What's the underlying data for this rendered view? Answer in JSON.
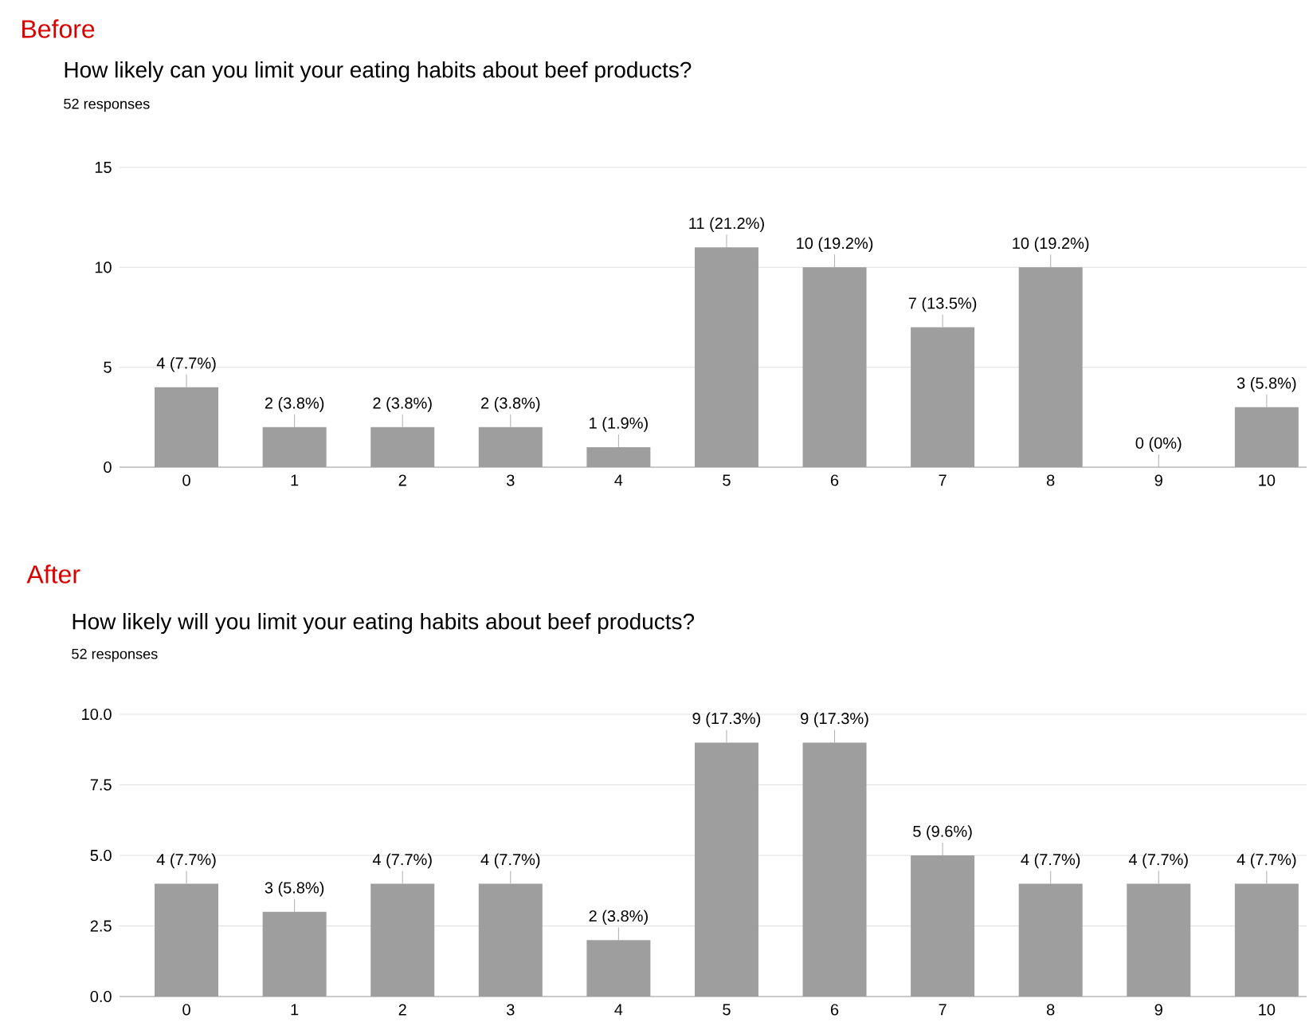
{
  "chart_data": [
    {
      "type": "bar",
      "annotations": [
        "Before"
      ],
      "title": "How likely can you limit your eating habits about beef products?",
      "subtitle": "52 responses",
      "categories": [
        "0",
        "1",
        "2",
        "3",
        "4",
        "5",
        "6",
        "7",
        "8",
        "9",
        "10"
      ],
      "values": [
        4,
        2,
        2,
        2,
        1,
        11,
        10,
        7,
        10,
        0,
        3
      ],
      "value_labels": [
        "4 (7.7%)",
        "2 (3.8%)",
        "2 (3.8%)",
        "2 (3.8%)",
        "1 (1.9%)",
        "11 (21.2%)",
        "10 (19.2%)",
        "7 (13.5%)",
        "10 (19.2%)",
        "0 (0%)",
        "3 (5.8%)"
      ],
      "color": "#9e9e9e",
      "ylim": [
        0,
        15
      ],
      "yticks": [
        0,
        5,
        10,
        15
      ],
      "grid": "y"
    },
    {
      "type": "bar",
      "annotations": [
        "After"
      ],
      "title": "How likely will you limit your eating habits about beef products?",
      "subtitle": "52 responses",
      "categories": [
        "0",
        "1",
        "2",
        "3",
        "4",
        "5",
        "6",
        "7",
        "8",
        "9",
        "10"
      ],
      "values": [
        4,
        3,
        4,
        4,
        2,
        9,
        9,
        5,
        4,
        4,
        4
      ],
      "value_labels": [
        "4 (7.7%)",
        "3 (5.8%)",
        "4 (7.7%)",
        "4 (7.7%)",
        "2 (3.8%)",
        "9 (17.3%)",
        "9 (17.3%)",
        "5 (9.6%)",
        "4 (7.7%)",
        "4 (7.7%)",
        "4 (7.7%)"
      ],
      "color": "#9e9e9e",
      "ylim": [
        0,
        10
      ],
      "yticks": [
        {
          "value": 0,
          "label": "0.0"
        },
        {
          "value": 2.5,
          "label": "2.5"
        },
        {
          "value": 5,
          "label": "5.0"
        },
        {
          "value": 7.5,
          "label": "7.5"
        },
        {
          "value": 10,
          "label": "10.0"
        }
      ],
      "grid": "y"
    }
  ]
}
